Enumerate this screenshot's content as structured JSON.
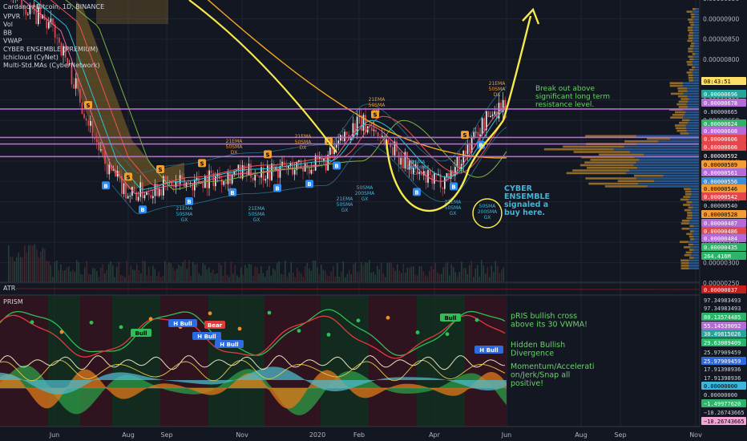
{
  "header": {
    "symbol_line": "Cardano / Bitcoin, 1D, BINANCE",
    "indicators": [
      "VPVR",
      "Vol",
      "BB",
      "VWAP",
      "CYBER ENSEMBLE (PREMIUM)",
      "Ichicloud (CyNet)",
      "Multi-Std.MAs (CyberNetwork)"
    ]
  },
  "colors": {
    "background": "#131722",
    "grid": "#1f2430",
    "candle_up": "#e8e8e8",
    "candle_down": "#e2474b",
    "resistance_line": "#c36be0",
    "yellow_arc": "#f6e94b",
    "annotation_green": "#6ccf6c",
    "annotation_cyan": "#3fb6d9",
    "cloud_orange": "#8a6a2a",
    "buy_marker": "#2d8cf0",
    "sell_marker": "#f0a030"
  },
  "panes": {
    "atr_label": "ATR",
    "prism_label": "PRISM"
  },
  "right_axis_ticks": [
    "0.00000950",
    "0.00000900",
    "0.00000850",
    "0.00000800",
    "0.00000750",
    "0.00000700",
    "0.00000650",
    "0.00000600",
    "0.00000550",
    "0.00000500",
    "0.00000450",
    "0.00000400",
    "0.00000350",
    "0.00000300",
    "0.00000250"
  ],
  "price_badges": [
    {
      "text": "08:43:51",
      "bg": "#ffe066",
      "fg": "#000"
    },
    {
      "text": "0.00000696",
      "bg": "#26a69a",
      "fg": "#fff"
    },
    {
      "text": "0.00000678",
      "bg": "#b36bd6",
      "fg": "#fff"
    },
    {
      "text": "0.00000665",
      "bg": "#131722",
      "fg": "#d1d4dc"
    },
    {
      "text": "0.00000624",
      "bg": "#2db36a",
      "fg": "#fff"
    },
    {
      "text": "0.00000608",
      "bg": "#b36bd6",
      "fg": "#fff"
    },
    {
      "text": "0.00000606",
      "bg": "#e2474b",
      "fg": "#fff"
    },
    {
      "text": "0.00000606",
      "bg": "#e2474b",
      "fg": "#fff"
    },
    {
      "text": "0.00000592",
      "bg": "#131722",
      "fg": "#fff"
    },
    {
      "text": "0.00000589",
      "bg": "#f29c38",
      "fg": "#000"
    },
    {
      "text": "0.00000561",
      "bg": "#b36bd6",
      "fg": "#fff"
    },
    {
      "text": "0.00000556",
      "bg": "#3a8edb",
      "fg": "#fff"
    },
    {
      "text": "0.00000546",
      "bg": "#f29c38",
      "fg": "#000"
    },
    {
      "text": "0.00000542",
      "bg": "#e2474b",
      "fg": "#fff"
    },
    {
      "text": "0.00000540",
      "bg": "#131722",
      "fg": "#d1d4dc"
    },
    {
      "text": "0.00000528",
      "bg": "#f29c38",
      "fg": "#000"
    },
    {
      "text": "0.00000487",
      "bg": "#b36bd6",
      "fg": "#fff"
    },
    {
      "text": "0.00000486",
      "bg": "#e2474b",
      "fg": "#fff"
    },
    {
      "text": "0.00000484",
      "bg": "#b36bd6",
      "fg": "#fff"
    },
    {
      "text": "0.00000435",
      "bg": "#2db36a",
      "fg": "#fff"
    },
    {
      "text": "264.416M",
      "bg": "#2db36a",
      "fg": "#fff"
    }
  ],
  "atr_badge": {
    "text": "0.00000037",
    "bg": "#c41d1d",
    "fg": "#fff"
  },
  "prism_badges": [
    {
      "text": "97.34983493",
      "bg": "#131722",
      "fg": "#d1d4dc"
    },
    {
      "text": "97.34983493",
      "bg": "#131722",
      "fg": "#d1d4dc"
    },
    {
      "text": "80.13574485",
      "bg": "#2db36a",
      "fg": "#fff"
    },
    {
      "text": "55.14539092",
      "bg": "#b36bd6",
      "fg": "#fff"
    },
    {
      "text": "30.49815026",
      "bg": "#26a69a",
      "fg": "#fff"
    },
    {
      "text": "29.63089409",
      "bg": "#2db36a",
      "fg": "#fff"
    },
    {
      "text": "25.97909459",
      "bg": "#131722",
      "fg": "#d1d4dc"
    },
    {
      "text": "25.97909459",
      "bg": "#2d6be0",
      "fg": "#fff"
    },
    {
      "text": "17.91398936",
      "bg": "#131722",
      "fg": "#d1d4dc"
    },
    {
      "text": "17.91398936",
      "bg": "#131722",
      "fg": "#d1d4dc"
    },
    {
      "text": "0.00000000",
      "bg": "#3fb6d9",
      "fg": "#000"
    },
    {
      "text": "0.00000000",
      "bg": "#131722",
      "fg": "#d1d4dc"
    },
    {
      "text": "−1.49977620",
      "bg": "#2db36a",
      "fg": "#fff"
    },
    {
      "text": "−10.26743665",
      "bg": "#131722",
      "fg": "#d1d4dc"
    },
    {
      "text": "−10.26743665",
      "bg": "#f3a6d6",
      "fg": "#000"
    }
  ],
  "date_ticks": [
    "Jun",
    "Aug",
    "Sep",
    "Nov",
    "2020",
    "Feb",
    "Apr",
    "Jun",
    "Aug",
    "Sep",
    "Nov"
  ],
  "annotations": {
    "breakout": [
      "Break out above",
      "significant long term",
      "resistance level."
    ],
    "cyber": [
      "CYBER",
      "ENSEMBLE",
      "signaled a",
      "buy here."
    ],
    "pris": [
      "pRIS bullish cross",
      "above its 30 VWMA!"
    ],
    "hidden": [
      "Hidden Bullish",
      "Divergence"
    ],
    "momentum": [
      "Momentum/Accelerati",
      "on/Jerk/Snap all",
      "positive!"
    ]
  },
  "small_labels": {
    "ma_labels": [
      [
        "21EMA",
        "50SMA",
        "DX"
      ],
      [
        "21EMA",
        "50SMA",
        "DX"
      ],
      [
        "21EMA",
        "50SMA",
        "DX"
      ],
      [
        "21EMA",
        "50SMA",
        "DX"
      ],
      [
        "21EMA",
        "50SMA",
        "GX"
      ],
      [
        "21EMA",
        "50SMA",
        "GX"
      ],
      [
        "50SMA",
        "200SMA",
        "GX"
      ],
      [
        "21EMA",
        "50SMA",
        "GX"
      ],
      [
        "21EMA",
        "50SMA",
        "GX"
      ],
      [
        "50SMA",
        "200SMA",
        "GX"
      ]
    ],
    "circle_label": [
      "50SMA",
      "200SMA",
      "GX"
    ],
    "prism_tags": [
      "Bull",
      "H Bull",
      "Bear",
      "H Bull",
      "H Bull",
      "Bull",
      "H Bull"
    ]
  },
  "chart_data": {
    "type": "line",
    "title": "Cardano / Bitcoin, 1D, BINANCE",
    "xlabel": "",
    "ylabel": "",
    "ylim": [
      2.5e-06,
      9.5e-06
    ],
    "x": [
      "Jun",
      "Aug",
      "Sep",
      "Nov",
      "2020",
      "Feb",
      "Apr",
      "Jun"
    ],
    "series": [
      {
        "values": [
          8.7e-06,
          4.7e-06,
          4.9e-06,
          5.2e-06,
          5.4e-06,
          6.4e-06,
          5e-06,
          6.9e-06
        ]
      }
    ],
    "horizontal_levels": [
      6.78e-06,
      6.08e-06,
      5.92e-06,
      5.61e-06
    ],
    "grid": true
  }
}
